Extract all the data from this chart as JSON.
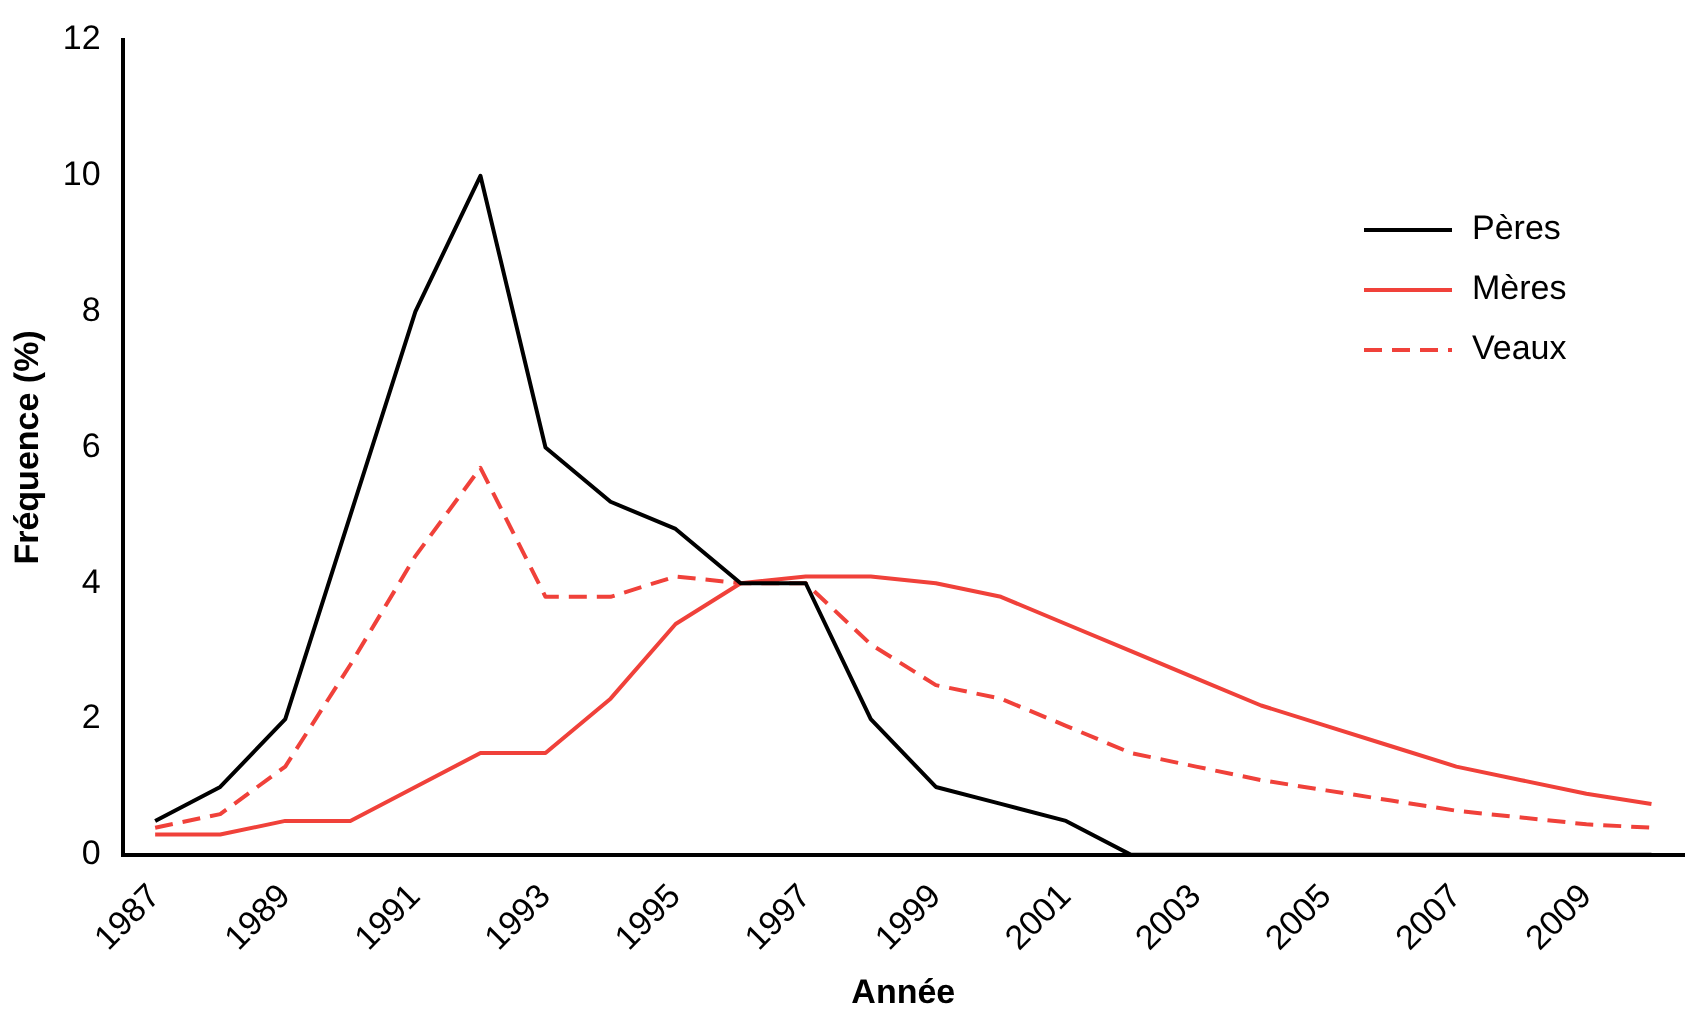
{
  "chart_data": {
    "type": "line",
    "xlabel": "Année",
    "ylabel": "Fréquence (%)",
    "categories": [
      "1987",
      null,
      "1989",
      null,
      "1991",
      null,
      "1993",
      null,
      "1995",
      null,
      "1997",
      null,
      "1999",
      null,
      "2001",
      null,
      "2003",
      null,
      "2005",
      null,
      "2007",
      null,
      "2009",
      null
    ],
    "series": [
      {
        "name": "Pères",
        "color": "#000000",
        "line_style": "solid",
        "values": [
          0.5,
          1.0,
          2.0,
          5.0,
          8.0,
          10.0,
          6.0,
          5.2,
          4.8,
          4.0,
          4.0,
          2.0,
          1.0,
          0.75,
          0.5,
          0,
          0,
          0,
          0,
          0,
          0,
          0,
          0,
          0
        ]
      },
      {
        "name": "Mères",
        "color": "#f0413a",
        "line_style": "solid",
        "values": [
          0.3,
          0.3,
          0.5,
          0.5,
          1.0,
          1.5,
          1.5,
          2.3,
          3.4,
          4.0,
          4.1,
          4.1,
          4.0,
          3.8,
          3.4,
          3.0,
          2.6,
          2.2,
          1.9,
          1.6,
          1.3,
          1.1,
          0.9,
          0.75
        ]
      },
      {
        "name": "Veaux",
        "color": "#f0413a",
        "line_style": "dashed",
        "values": [
          0.4,
          0.6,
          1.3,
          2.8,
          4.4,
          5.7,
          3.8,
          3.8,
          4.1,
          4.0,
          4.0,
          3.1,
          2.5,
          2.3,
          1.9,
          1.5,
          1.3,
          1.1,
          0.95,
          0.8,
          0.65,
          0.55,
          0.45,
          0.4
        ]
      }
    ],
    "ylim": [
      0,
      12
    ],
    "yticks": [
      0,
      2,
      4,
      6,
      8,
      10,
      12
    ],
    "grid": false,
    "legend": "top right",
    "marker": "none"
  }
}
